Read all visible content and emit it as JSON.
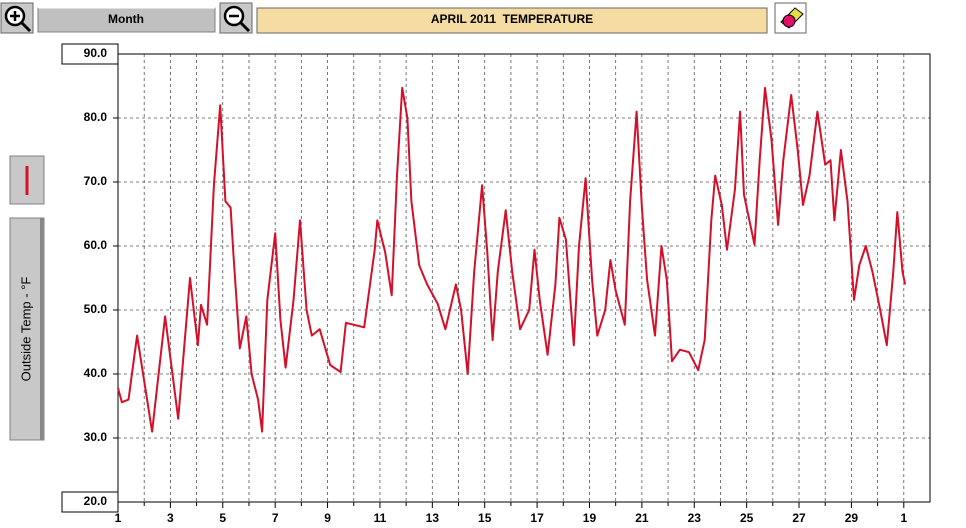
{
  "ui": {
    "range_button": "Month"
  },
  "chart_data": {
    "type": "line",
    "title": "APRIL 2011  TEMPERATURE",
    "ylabel": "Outside Temp - °F",
    "color": "#d3102a",
    "xlim": [
      1,
      32
    ],
    "ylim": [
      20,
      90
    ],
    "xticks": [
      1,
      3,
      5,
      7,
      9,
      11,
      13,
      15,
      17,
      19,
      21,
      23,
      25,
      27,
      29,
      {
        "value": 31,
        "label": "1"
      }
    ],
    "xminor_ticks": [
      2,
      4,
      6,
      8,
      10,
      12,
      14,
      16,
      18,
      20,
      22,
      24,
      26,
      28,
      30
    ],
    "yticks": [
      {
        "value": 20,
        "label": "20.0"
      },
      {
        "value": 30,
        "label": "30.0"
      },
      {
        "value": 40,
        "label": "40.0"
      },
      {
        "value": 50,
        "label": "50.0"
      },
      {
        "value": 60,
        "label": "60.0"
      },
      {
        "value": 70,
        "label": "70.0"
      },
      {
        "value": 80,
        "label": "80.0"
      },
      {
        "value": 90,
        "label": "90.0"
      }
    ],
    "grid": true,
    "x": [
      1.0,
      1.15,
      1.4,
      1.73,
      2.3,
      2.8,
      3.3,
      3.75,
      4.05,
      4.17,
      4.4,
      4.66,
      4.9,
      5.1,
      5.3,
      5.4,
      5.65,
      5.9,
      6.1,
      6.35,
      6.5,
      6.7,
      7.0,
      7.2,
      7.4,
      7.7,
      7.95,
      8.2,
      8.4,
      8.7,
      9.1,
      9.5,
      9.7,
      10.4,
      10.8,
      10.9,
      11.2,
      11.45,
      11.65,
      11.85,
      12.05,
      12.2,
      12.5,
      12.8,
      13.2,
      13.5,
      13.9,
      14.1,
      14.35,
      14.6,
      14.9,
      15.1,
      15.3,
      15.5,
      15.8,
      16.05,
      16.35,
      16.7,
      16.9,
      17.1,
      17.4,
      17.7,
      17.85,
      18.1,
      18.4,
      18.6,
      18.85,
      19.1,
      19.3,
      19.6,
      19.8,
      20.0,
      20.35,
      20.55,
      20.8,
      21.0,
      21.2,
      21.5,
      21.75,
      21.95,
      22.15,
      22.45,
      22.8,
      23.15,
      23.4,
      23.65,
      23.8,
      24.05,
      24.25,
      24.55,
      24.75,
      24.9,
      25.3,
      25.5,
      25.7,
      25.95,
      26.2,
      26.4,
      26.7,
      26.95,
      27.15,
      27.4,
      27.7,
      28.0,
      28.2,
      28.35,
      28.6,
      28.85,
      29.1,
      29.3,
      29.55,
      29.8,
      30.1,
      30.35,
      30.6,
      30.75,
      30.95,
      31.05
    ],
    "values": [
      37.8,
      35.6,
      36,
      46,
      31,
      49,
      33,
      55,
      44.5,
      50.8,
      47.7,
      69.5,
      82,
      67,
      66,
      59,
      44,
      49,
      40,
      36,
      31,
      51.5,
      62,
      48.5,
      41,
      51.5,
      64,
      50,
      46,
      47,
      41.4,
      40.3,
      48,
      47.3,
      59.4,
      64,
      59,
      52.3,
      71,
      84.7,
      80,
      67,
      57,
      54,
      51,
      47,
      54,
      50,
      40,
      56,
      69.5,
      59,
      45.3,
      56,
      65.6,
      56,
      47,
      50,
      59.4,
      51.6,
      43,
      54,
      64.4,
      61,
      44.5,
      60,
      70.6,
      54.7,
      46,
      50,
      57.8,
      53,
      47.7,
      67,
      81,
      66,
      54.7,
      46,
      60,
      54.7,
      42,
      43.8,
      43.4,
      40.6,
      45.3,
      64,
      71,
      66.4,
      59.4,
      68.8,
      81,
      68,
      60.2,
      73.4,
      84.7,
      76.6,
      63.3,
      73.4,
      83.6,
      75,
      66.4,
      71,
      81,
      72.7,
      73.4,
      64,
      75,
      67,
      51.6,
      57,
      60,
      56,
      50,
      44.5,
      56,
      65.3,
      56,
      54
    ]
  }
}
